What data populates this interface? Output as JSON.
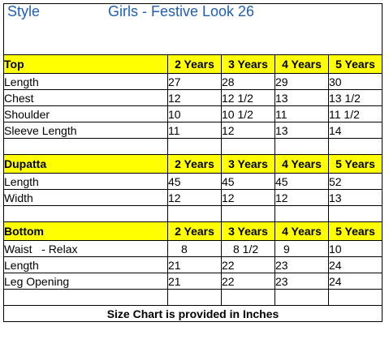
{
  "header": {
    "style_label": "Style",
    "title": "Girls  - Festive Look 26"
  },
  "sections": [
    {
      "name": "Top",
      "sizes": [
        "2 Years",
        "3 Years",
        "4 Years",
        "5 Years"
      ],
      "rows": [
        {
          "label": "Length",
          "values": [
            "27",
            "28",
            "29",
            "30"
          ]
        },
        {
          "label": "Chest",
          "values": [
            "12",
            "12 1/2",
            "13",
            "13 1/2"
          ]
        },
        {
          "label": "Shoulder",
          "values": [
            "10",
            "10 1/2",
            "11",
            "11 1/2"
          ]
        },
        {
          "label": "Sleeve Length",
          "values": [
            "11",
            "12",
            "13",
            "14"
          ]
        }
      ]
    },
    {
      "name": "Dupatta",
      "sizes": [
        "2 Years",
        "3 Years",
        "4 Years",
        "5 Years"
      ],
      "rows": [
        {
          "label": "Length",
          "values": [
            "45",
            "45",
            "45",
            "52"
          ]
        },
        {
          "label": "Width",
          "values": [
            "12",
            "12",
            "12",
            "13"
          ]
        }
      ]
    },
    {
      "name": "Bottom",
      "sizes": [
        "2 Years",
        "3 Years",
        "4 Years",
        "5 Years"
      ],
      "rows": [
        {
          "label": "Waist   - Relax",
          "values": [
            "8",
            "8 1/2",
            "9",
            "10"
          ]
        },
        {
          "label": "Length",
          "values": [
            "21",
            "22",
            "23",
            "24"
          ]
        },
        {
          "label": "Leg Opening",
          "values": [
            "21",
            "22",
            "23",
            "24"
          ]
        }
      ]
    }
  ],
  "footer": "Size Chart is provided in Inches",
  "colors": {
    "section_fill": "#ffff00",
    "heading_blue": "#1f5fb5"
  }
}
